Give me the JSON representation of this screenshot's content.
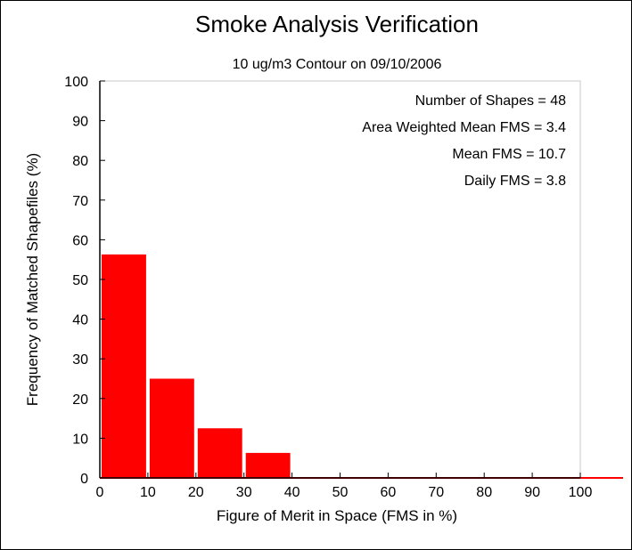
{
  "chart_data": {
    "type": "bar",
    "title": "Smoke Analysis Verification",
    "subtitle": "10 ug/m3 Contour on 09/10/2006",
    "xlabel": "Figure of Merit in Space (FMS in %)",
    "ylabel": "Frequency of Matched Shapefiles (%)",
    "xlim": [
      0,
      100
    ],
    "ylim": [
      0,
      100
    ],
    "xticks": [
      "0",
      "10",
      "20",
      "30",
      "40",
      "50",
      "60",
      "70",
      "80",
      "90",
      "100"
    ],
    "yticks": [
      "0",
      "10",
      "20",
      "30",
      "40",
      "50",
      "60",
      "70",
      "80",
      "90",
      "100"
    ],
    "bins": [
      {
        "from": 0,
        "to": 10,
        "value": 56.3
      },
      {
        "from": 10,
        "to": 20,
        "value": 25.0
      },
      {
        "from": 20,
        "to": 30,
        "value": 12.5
      },
      {
        "from": 30,
        "to": 40,
        "value": 6.3
      },
      {
        "from": 40,
        "to": 50,
        "value": 0
      },
      {
        "from": 50,
        "to": 60,
        "value": 0
      },
      {
        "from": 60,
        "to": 70,
        "value": 0
      },
      {
        "from": 70,
        "to": 80,
        "value": 0
      },
      {
        "from": 80,
        "to": 90,
        "value": 0
      },
      {
        "from": 90,
        "to": 100,
        "value": 0
      }
    ],
    "bar_color": "#ff0000",
    "grid": false,
    "stats": [
      "Number of Shapes = 48",
      "Area Weighted Mean FMS = 3.4",
      "Mean FMS = 10.7",
      "Daily FMS = 3.8"
    ]
  }
}
